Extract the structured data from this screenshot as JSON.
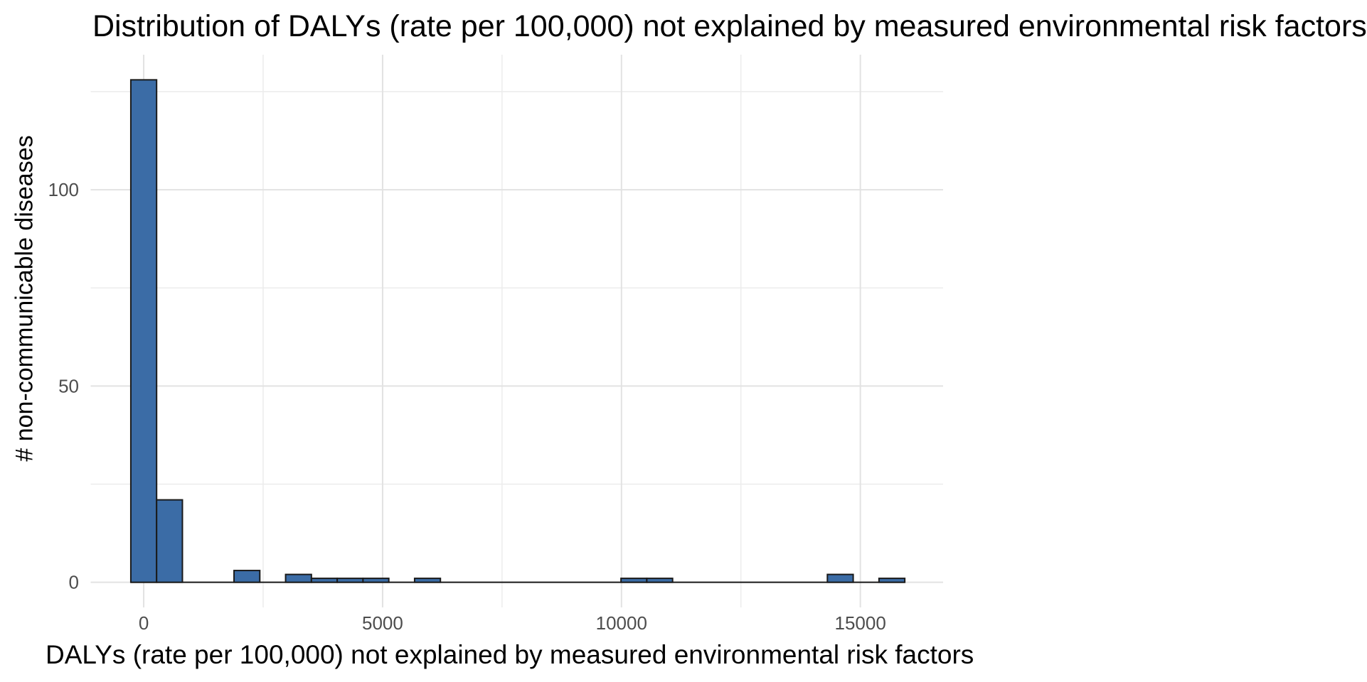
{
  "figure": {
    "background": "#ffffff"
  },
  "chart_data": {
    "type": "bar",
    "subtype": "histogram",
    "title": "Distribution of DALYs (rate per 100,000) not explained by measured environmental risk factors",
    "xlabel": "DALYs (rate per 100,000) not explained by measured environmental risk factors",
    "ylabel": "# non-communicable diseases",
    "bin_start": -270,
    "bin_width": 540,
    "counts": [
      128,
      21,
      0,
      0,
      3,
      0,
      2,
      1,
      1,
      1,
      0,
      1,
      0,
      0,
      0,
      0,
      0,
      0,
      0,
      1,
      1,
      0,
      0,
      0,
      0,
      0,
      0,
      2,
      0,
      1
    ],
    "x_major_ticks": [
      0,
      5000,
      10000,
      15000
    ],
    "x_minor_ticks": [
      2500,
      7500,
      12500
    ],
    "x_tick_labels": [
      "0",
      "5000",
      "10000",
      "15000"
    ],
    "y_major_ticks": [
      0,
      50,
      100
    ],
    "y_minor_ticks": [
      25,
      75,
      125
    ],
    "y_tick_labels": [
      "0",
      "50",
      "100"
    ],
    "xlim": [
      -1110,
      16732
    ],
    "ylim": [
      -6.4,
      134.4
    ],
    "grid": true,
    "legend": false,
    "colors": {
      "bar_fill": "#3B6CA6",
      "bar_stroke": "#1A1A1A",
      "baseline": "#1A1A1A",
      "grid_major": "#E2E2E2",
      "grid_minor": "#ECECEC",
      "tick_label": "#4D4D4D",
      "title_text": "#000000"
    }
  }
}
